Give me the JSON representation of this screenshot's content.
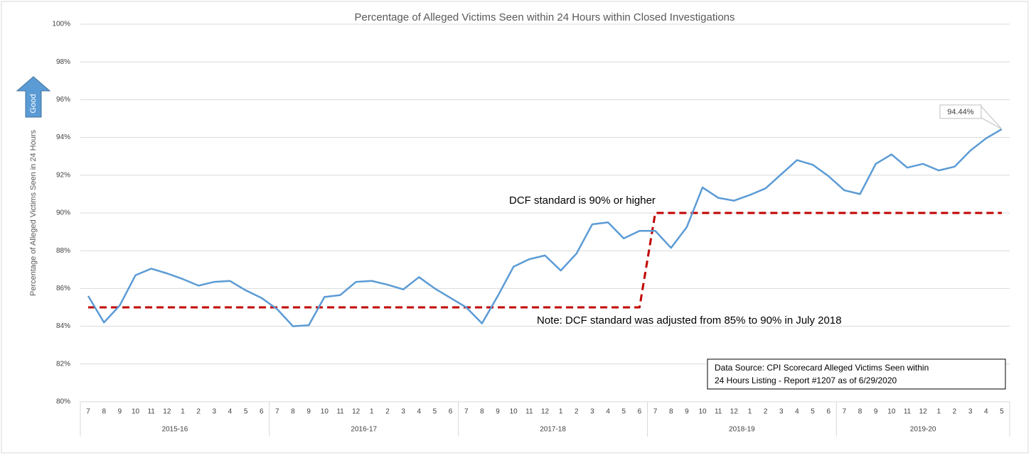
{
  "chart_data": {
    "type": "line",
    "title": "Percentage of Alleged Victims Seen within 24 Hours within Closed Investigations",
    "y_label": "Percentage of Alleged Victims Seen in 24 Hours",
    "badge": "Good",
    "categories": [
      "7",
      "8",
      "9",
      "10",
      "11",
      "12",
      "1",
      "2",
      "3",
      "4",
      "5",
      "6",
      "7",
      "8",
      "9",
      "10",
      "11",
      "12",
      "1",
      "2",
      "3",
      "4",
      "5",
      "6",
      "7",
      "8",
      "9",
      "10",
      "11",
      "12",
      "1",
      "2",
      "3",
      "4",
      "5",
      "6",
      "7",
      "8",
      "9",
      "10",
      "11",
      "12",
      "1",
      "2",
      "3",
      "4",
      "5",
      "6",
      "7",
      "8",
      "9",
      "10",
      "11",
      "12",
      "1",
      "2",
      "3",
      "4",
      "5"
    ],
    "groups": [
      "2015-16",
      "2016-17",
      "2017-18",
      "2018-19",
      "2019-20"
    ],
    "series": [
      {
        "color": "#5b9bd5",
        "values": [
          85.6,
          84.2,
          85.1,
          86.7,
          87.05,
          86.8,
          86.5,
          86.15,
          86.35,
          86.4,
          85.9,
          85.5,
          84.9,
          84.0,
          84.05,
          85.55,
          85.65,
          86.35,
          86.4,
          86.2,
          85.95,
          86.6,
          86.0,
          85.5,
          85.0,
          84.15,
          85.6,
          87.15,
          87.55,
          87.75,
          86.95,
          87.85,
          89.4,
          89.5,
          88.65,
          89.05,
          89.05,
          88.15,
          89.25,
          91.35,
          90.8,
          90.65,
          90.95,
          91.3,
          92.05,
          92.8,
          92.55,
          91.95,
          91.2,
          91.0,
          92.6,
          93.1,
          92.4,
          92.6,
          92.25,
          92.45,
          93.3,
          93.95,
          94.44
        ],
        "value_labels": [
          null,
          null,
          null,
          null,
          null,
          null,
          null,
          null,
          null,
          null,
          null,
          null,
          null,
          null,
          null,
          null,
          null,
          null,
          null,
          null,
          null,
          null,
          null,
          null,
          null,
          null,
          null,
          null,
          null,
          null,
          null,
          null,
          null,
          null,
          null,
          null,
          null,
          null,
          null,
          null,
          null,
          null,
          null,
          null,
          null,
          null,
          null,
          null,
          null,
          null,
          null,
          null,
          null,
          null,
          null,
          null,
          null,
          null,
          "94.44%"
        ]
      },
      {
        "color": "#c00000",
        "dashed": true,
        "values": [
          85,
          85,
          85,
          85,
          85,
          85,
          85,
          85,
          85,
          85,
          85,
          85,
          85,
          85,
          85,
          85,
          85,
          85,
          85,
          85,
          85,
          85,
          85,
          85,
          85,
          85,
          85,
          85,
          85,
          85,
          85,
          85,
          85,
          85,
          85,
          85,
          90,
          90,
          90,
          90,
          90,
          90,
          90,
          90,
          90,
          90,
          90,
          90,
          90,
          90,
          90,
          90,
          90,
          90,
          90,
          90,
          90,
          90,
          90
        ]
      }
    ],
    "ylim": [
      80,
      100
    ],
    "yticks": [
      {
        "value": 80,
        "label": "80%"
      },
      {
        "value": 82,
        "label": "82%"
      },
      {
        "value": 84,
        "label": "84%"
      },
      {
        "value": 86,
        "label": "86%"
      },
      {
        "value": 88,
        "label": "88%"
      },
      {
        "value": 90,
        "label": "90%"
      },
      {
        "value": 92,
        "label": "92%"
      },
      {
        "value": 94,
        "label": "94%"
      },
      {
        "value": 96,
        "label": "96%"
      },
      {
        "value": 98,
        "label": "98%"
      },
      {
        "value": 100,
        "label": "100%"
      }
    ],
    "grid": true,
    "annotations": [
      "DCF standard is 90% or higher",
      "Note: DCF standard was adjusted from 85% to 90% in July 2018"
    ],
    "source": [
      "Data Source: CPI Scorecard Alleged Victims Seen within",
      "24 Hours Listing - Report #1207  as of 6/29/2020"
    ]
  }
}
